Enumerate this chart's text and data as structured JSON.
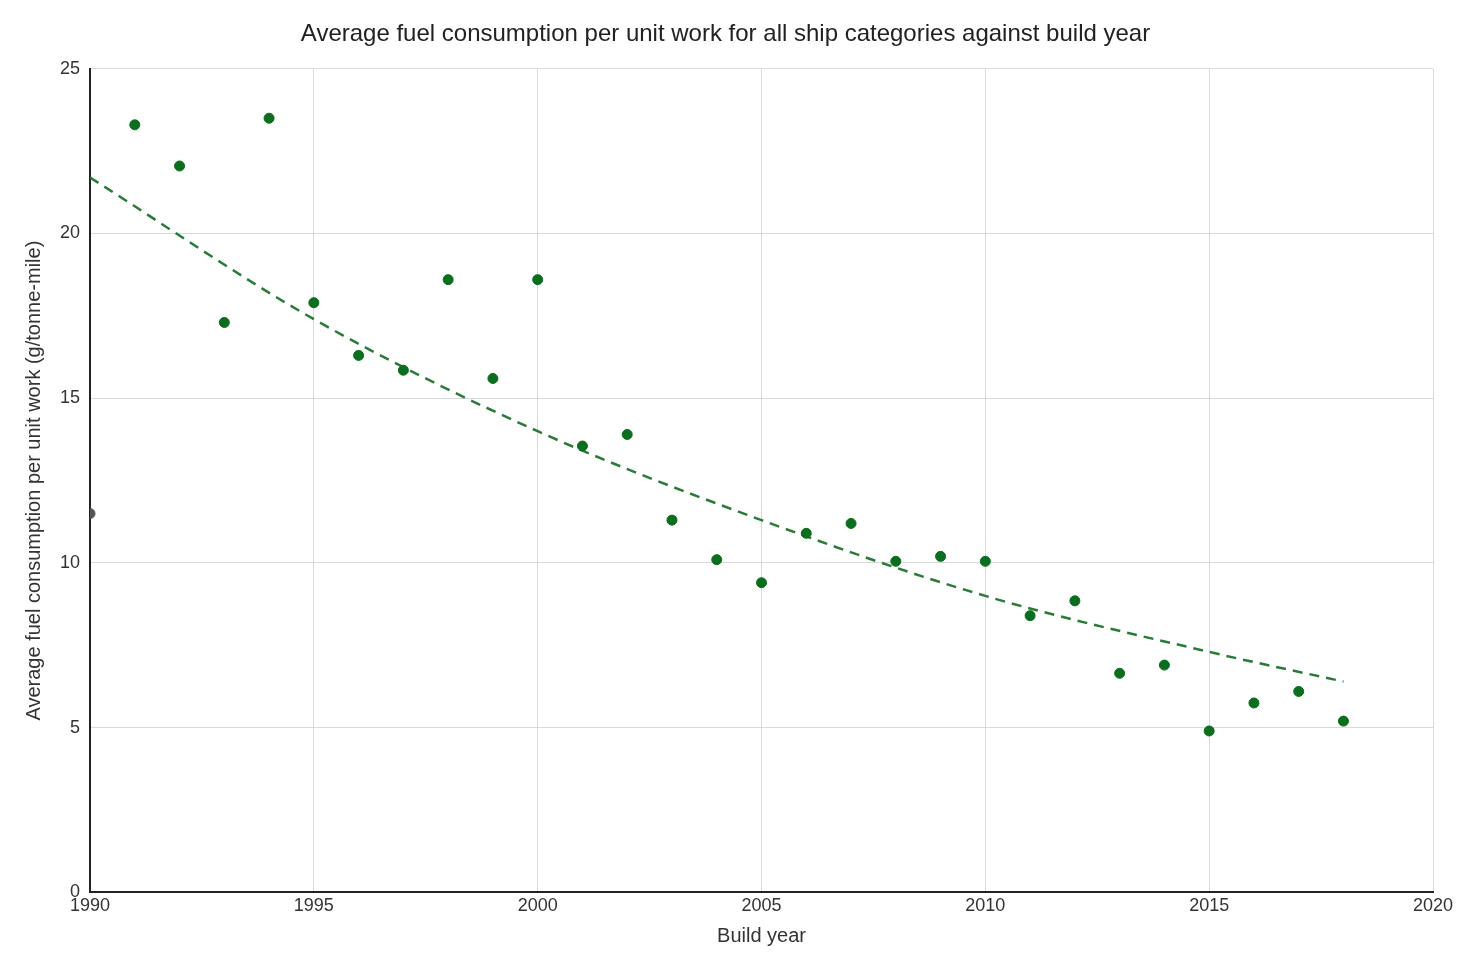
{
  "chart_data": {
    "type": "scatter",
    "title": "Average fuel consumption per unit work for all ship categories against build year",
    "xlabel": "Build year",
    "ylabel": "Average fuel consumption per unit work (g/tonne-mile)",
    "x": [
      1991,
      1992,
      1993,
      1994,
      1995,
      1996,
      1997,
      1998,
      1999,
      2000,
      2001,
      2002,
      2003,
      2004,
      2005,
      2006,
      2007,
      2008,
      2009,
      2010,
      2011,
      2012,
      2013,
      2014,
      2015,
      2016,
      2017,
      2018
    ],
    "series": [
      {
        "type": "scatter",
        "color": "#0b6e1e",
        "values": [
          23.3,
          22.05,
          17.3,
          23.5,
          17.9,
          16.3,
          15.85,
          18.6,
          15.6,
          18.6,
          13.55,
          13.9,
          11.3,
          10.1,
          9.4,
          10.9,
          11.2,
          10.05,
          10.2,
          10.05,
          8.4,
          8.85,
          6.65,
          6.9,
          4.9,
          5.75,
          6.1,
          5.2
        ]
      },
      {
        "type": "scatter",
        "color": "#555555",
        "x": [
          1990
        ],
        "values": [
          11.5
        ]
      },
      {
        "type": "line",
        "color": "#2a7a3a",
        "line_style": "dashed",
        "marker": "none",
        "x": [
          1990,
          1995,
          2000,
          2005,
          2010,
          2015,
          2018
        ],
        "values": [
          21.7,
          17.4,
          14.0,
          11.3,
          9.0,
          7.3,
          6.4
        ]
      }
    ],
    "marker": "circle",
    "xlim": [
      1990,
      2020
    ],
    "xticks": [
      1990,
      1995,
      2000,
      2005,
      2010,
      2015,
      2020
    ],
    "ylim": [
      0,
      25
    ],
    "yticks": [
      0,
      5,
      10,
      15,
      20,
      25
    ],
    "grid": true
  }
}
